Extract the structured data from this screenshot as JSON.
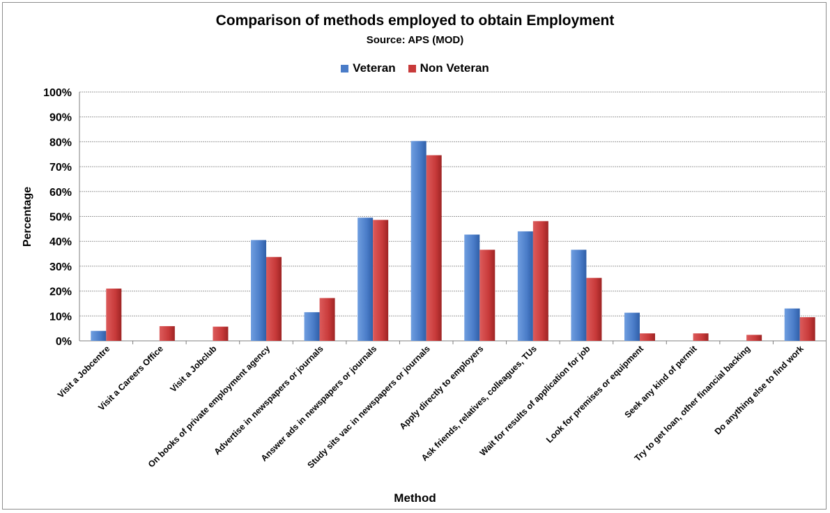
{
  "chart_data": {
    "type": "bar",
    "title": "Comparison of methods employed to obtain Employment",
    "subtitle": "Source: APS (MOD)",
    "xlabel": "Method",
    "ylabel": "Percentage",
    "ylim": [
      0,
      100
    ],
    "yticks": [
      "0%",
      "10%",
      "20%",
      "30%",
      "40%",
      "50%",
      "60%",
      "70%",
      "80%",
      "90%",
      "100%"
    ],
    "grid": true,
    "legend_position": "top",
    "categories": [
      "Visit a Jobcentre",
      "Visit a Careers Office",
      "Visit a Jobclub",
      "On books of private employment agency",
      "Advertise in newspapers or journals",
      "Answer ads in newspapers or journals",
      "Study sits vac in newspapers or journals",
      "Apply directly to employers",
      "Ask friends, relatives, colleagues, TUs",
      "Wait for results of application for job",
      "Look for premises or equipment",
      "Seek any kind of permit",
      "Try to get loan, other financial backing",
      "Do anything else to find work"
    ],
    "series": [
      {
        "name": "Veteran",
        "color": "#4a7cc8",
        "values": [
          4,
          0,
          0,
          40.5,
          11.5,
          49.5,
          80.3,
          42.7,
          44,
          36.6,
          11.3,
          0,
          0,
          13
        ]
      },
      {
        "name": "Non Veteran",
        "color": "#c83a3a",
        "values": [
          21,
          5.9,
          5.7,
          33.7,
          17.2,
          48.6,
          74.6,
          36.6,
          48.1,
          25.3,
          3,
          3,
          2.4,
          9.5
        ]
      }
    ]
  }
}
